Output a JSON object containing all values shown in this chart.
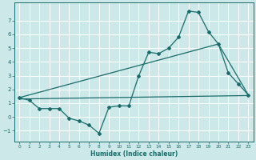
{
  "xlabel": "Humidex (Indice chaleur)",
  "bg_color": "#cce8e8",
  "grid_color": "#ffffff",
  "line_color": "#1a6b6b",
  "xlim": [
    -0.5,
    23.5
  ],
  "ylim": [
    -1.8,
    8.3
  ],
  "yticks": [
    -1,
    0,
    1,
    2,
    3,
    4,
    5,
    6,
    7
  ],
  "xticks": [
    0,
    1,
    2,
    3,
    4,
    5,
    6,
    7,
    8,
    9,
    10,
    11,
    12,
    13,
    14,
    15,
    16,
    17,
    18,
    19,
    20,
    21,
    22,
    23
  ],
  "series1_x": [
    0,
    1,
    2,
    3,
    4,
    5,
    6,
    7,
    8,
    9,
    10,
    11,
    12,
    13,
    14,
    15,
    16,
    17,
    18,
    19,
    20,
    21,
    22,
    23
  ],
  "series1_y": [
    1.4,
    1.2,
    0.6,
    0.6,
    0.6,
    -0.1,
    -0.3,
    -0.6,
    -1.2,
    0.7,
    0.8,
    0.8,
    3.0,
    4.7,
    4.6,
    5.0,
    5.8,
    7.7,
    7.6,
    6.2,
    5.3,
    3.2,
    2.4,
    1.6
  ],
  "series2_x": [
    0,
    20,
    23
  ],
  "series2_y": [
    1.4,
    5.3,
    1.6
  ],
  "series3_x": [
    0,
    23
  ],
  "series3_y": [
    1.3,
    1.55
  ],
  "xlabel_fontsize": 5.5,
  "tick_fontsize_x": 4.2,
  "tick_fontsize_y": 5.0
}
